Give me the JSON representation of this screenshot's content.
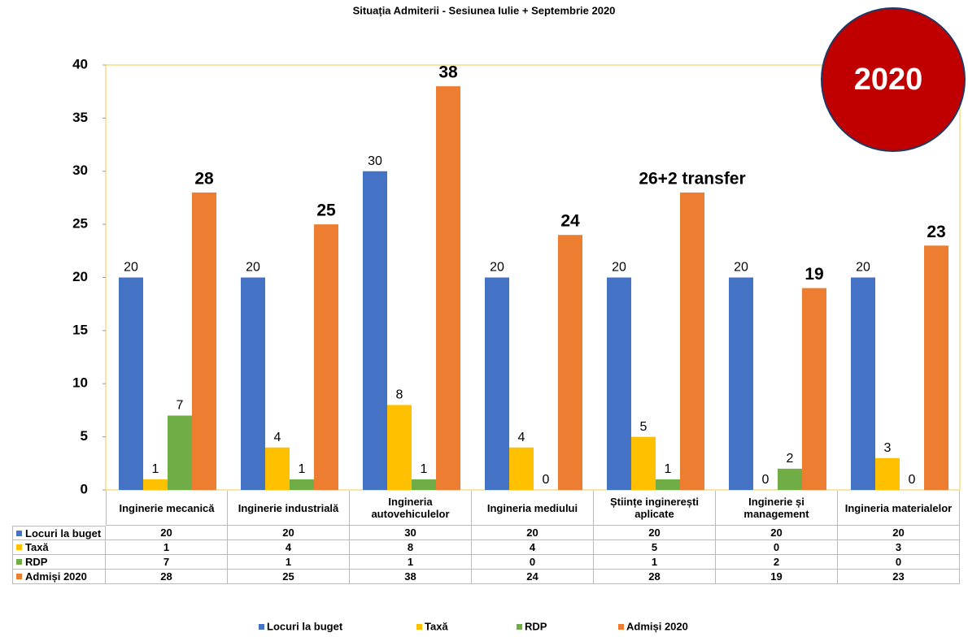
{
  "chart_data": {
    "type": "bar",
    "title": "Situația Admiterii - Sesiunea Iulie + Septembrie 2020",
    "annotation": "2020",
    "categories": [
      "Inginerie mecanică",
      "Inginerie industrială",
      "Ingineria autovehiculelor",
      "Ingineria mediului",
      "Științe inginerești aplicate",
      "Inginerie și management",
      "Ingineria materialelor"
    ],
    "series": [
      {
        "name": "Locuri la buget",
        "color": "#4472c4",
        "values": [
          20,
          20,
          30,
          20,
          20,
          20,
          20
        ]
      },
      {
        "name": "Taxă",
        "color": "#ffc000",
        "values": [
          1,
          4,
          8,
          4,
          5,
          0,
          3
        ]
      },
      {
        "name": "RDP",
        "color": "#70ad47",
        "values": [
          7,
          1,
          1,
          0,
          1,
          2,
          0
        ]
      },
      {
        "name": "Admiși 2020",
        "color": "#ed7d31",
        "values": [
          28,
          25,
          38,
          24,
          28,
          19,
          23
        ],
        "value_labels": [
          "28",
          "25",
          "38",
          "24",
          "26+2 transfer",
          "19",
          "23"
        ]
      }
    ],
    "ylim": [
      0,
      40
    ],
    "yticks": [
      0,
      5,
      10,
      15,
      20,
      25,
      30,
      35,
      40
    ],
    "grid": false,
    "legend": "bottom"
  }
}
